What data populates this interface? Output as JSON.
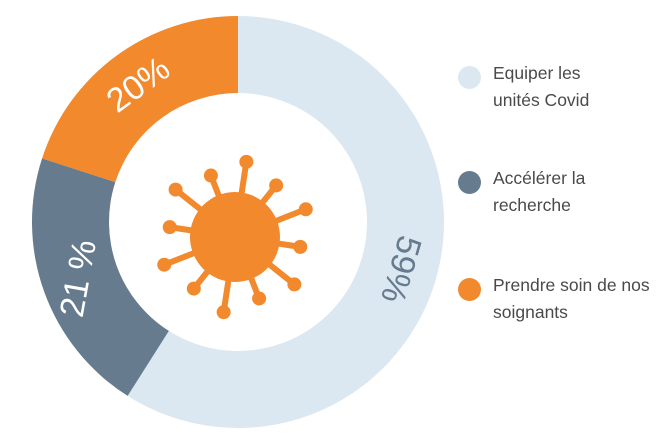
{
  "chart_data": {
    "type": "pie",
    "donut": true,
    "categories": [
      "Equiper les unités Covid",
      "Accélérer la recherche",
      "Prendre soin de nos soignants"
    ],
    "values": [
      59,
      21,
      20
    ],
    "value_labels": [
      "59%",
      "21 %",
      "20%"
    ],
    "colors": [
      "#dce8f1",
      "#667b8e",
      "#f2892c"
    ],
    "legend": "right"
  }
}
